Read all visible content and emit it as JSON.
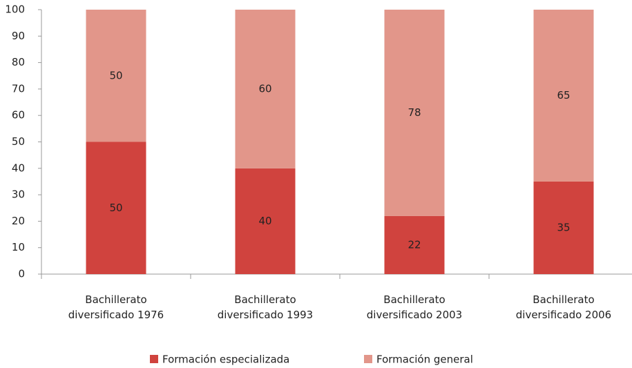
{
  "chart_data": {
    "type": "stacked_bar",
    "categories": [
      "Bachillerato\ndiversificado 1976",
      "Bachillerato\ndiversificado 1993",
      "Bachillerato\ndiversificado 2003",
      "Bachillerato\ndiversificado 2006"
    ],
    "series": [
      {
        "name": "Formación especializada",
        "color": "#d0433e",
        "values": [
          50,
          40,
          22,
          35
        ]
      },
      {
        "name": "Formación general",
        "color": "#e2968a",
        "values": [
          50,
          60,
          78,
          65
        ]
      }
    ],
    "ylim": [
      0,
      100
    ],
    "yticks": [
      0,
      10,
      20,
      30,
      40,
      50,
      60,
      70,
      80,
      90,
      100
    ],
    "grid": false,
    "legend": "bottom"
  }
}
